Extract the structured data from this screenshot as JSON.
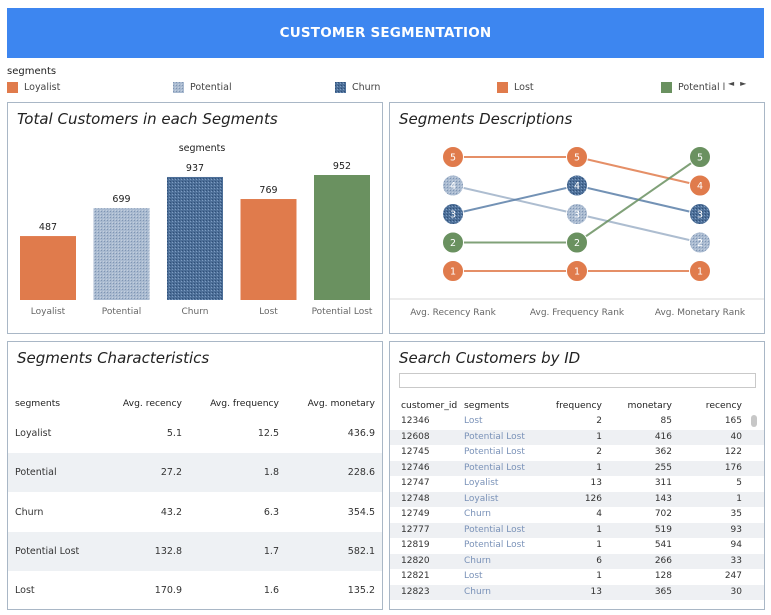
{
  "header": {
    "title": "CUSTOMER SEGMENTATION"
  },
  "legend": {
    "title": "segments",
    "items": [
      {
        "label": "Loyalist",
        "color": "#e07b4c"
      },
      {
        "label": "Potential",
        "color": "#9fb1c8"
      },
      {
        "label": "Churn",
        "color": "#5a7fa8"
      },
      {
        "label": "Lost",
        "color": "#e07b4c"
      },
      {
        "label": "Potential l",
        "color": "#6a9160"
      }
    ],
    "nav_prev": "◄",
    "nav_next": "►"
  },
  "totals_panel": {
    "title": "Total Customers in each Segments"
  },
  "descriptions_panel": {
    "title": "Segments Descriptions"
  },
  "characteristics_panel": {
    "title": "Segments Characteristics",
    "columns": [
      "segments",
      "Avg. recency",
      "Avg. frequency",
      "Avg. monetary"
    ],
    "rows": [
      {
        "segment": "Loyalist",
        "recency": "5.1",
        "frequency": "12.5",
        "monetary": "436.9"
      },
      {
        "segment": "Potential",
        "recency": "27.2",
        "frequency": "1.8",
        "monetary": "228.6"
      },
      {
        "segment": "Churn",
        "recency": "43.2",
        "frequency": "6.3",
        "monetary": "354.5"
      },
      {
        "segment": "Potential Lost",
        "recency": "132.8",
        "frequency": "1.7",
        "monetary": "582.1"
      },
      {
        "segment": "Lost",
        "recency": "170.9",
        "frequency": "1.6",
        "monetary": "135.2"
      }
    ]
  },
  "search_panel": {
    "title": "Search Customers by ID",
    "search_value": "",
    "columns": [
      "customer_id",
      "segments",
      "frequency",
      "monetary",
      "recency"
    ],
    "rows": [
      {
        "id": "12346",
        "segment": "Lost",
        "frequency": "2",
        "monetary": "85",
        "recency": "165"
      },
      {
        "id": "12608",
        "segment": "Potential Lost",
        "frequency": "1",
        "monetary": "416",
        "recency": "40"
      },
      {
        "id": "12745",
        "segment": "Potential Lost",
        "frequency": "2",
        "monetary": "362",
        "recency": "122"
      },
      {
        "id": "12746",
        "segment": "Potential Lost",
        "frequency": "1",
        "monetary": "255",
        "recency": "176"
      },
      {
        "id": "12747",
        "segment": "Loyalist",
        "frequency": "13",
        "monetary": "311",
        "recency": "5"
      },
      {
        "id": "12748",
        "segment": "Loyalist",
        "frequency": "126",
        "monetary": "143",
        "recency": "1"
      },
      {
        "id": "12749",
        "segment": "Churn",
        "frequency": "4",
        "monetary": "702",
        "recency": "35"
      },
      {
        "id": "12777",
        "segment": "Potential Lost",
        "frequency": "1",
        "monetary": "519",
        "recency": "93"
      },
      {
        "id": "12819",
        "segment": "Potential Lost",
        "frequency": "1",
        "monetary": "541",
        "recency": "94"
      },
      {
        "id": "12820",
        "segment": "Churn",
        "frequency": "6",
        "monetary": "266",
        "recency": "33"
      },
      {
        "id": "12821",
        "segment": "Lost",
        "frequency": "1",
        "monetary": "128",
        "recency": "247"
      },
      {
        "id": "12823",
        "segment": "Churn",
        "frequency": "13",
        "monetary": "365",
        "recency": "30"
      }
    ]
  },
  "chart_data": [
    {
      "type": "bar",
      "title": "",
      "xlabel": "segments",
      "categories": [
        "Loyalist",
        "Potential",
        "Churn",
        "Lost",
        "Potential Lost"
      ],
      "values": [
        487,
        699,
        937,
        769,
        952
      ],
      "colors": [
        "#e07b4c",
        "#9fb1c8",
        "#5a7fa8",
        "#e07b4c",
        "#6a9160"
      ],
      "ylim": [
        0,
        952
      ],
      "grid": false
    },
    {
      "type": "line",
      "title": "",
      "categories": [
        "Avg. Recency Rank",
        "Avg. Frequency Rank",
        "Avg. Monetary Rank"
      ],
      "ylim": [
        1,
        5
      ],
      "series": [
        {
          "segment": "Potential Lost",
          "color": "#e07b4c",
          "values": [
            5,
            5,
            4
          ]
        },
        {
          "segment": "Potential",
          "color": "#9fb1c8",
          "values": [
            4,
            3,
            2
          ]
        },
        {
          "segment": "Churn",
          "color": "#5a7fa8",
          "values": [
            3,
            4,
            3
          ]
        },
        {
          "segment": "Loyalist",
          "color": "#6a9160",
          "values": [
            2,
            2,
            5
          ]
        },
        {
          "segment": "Lost",
          "color": "#e07b4c",
          "values": [
            1,
            1,
            1
          ]
        }
      ]
    }
  ]
}
